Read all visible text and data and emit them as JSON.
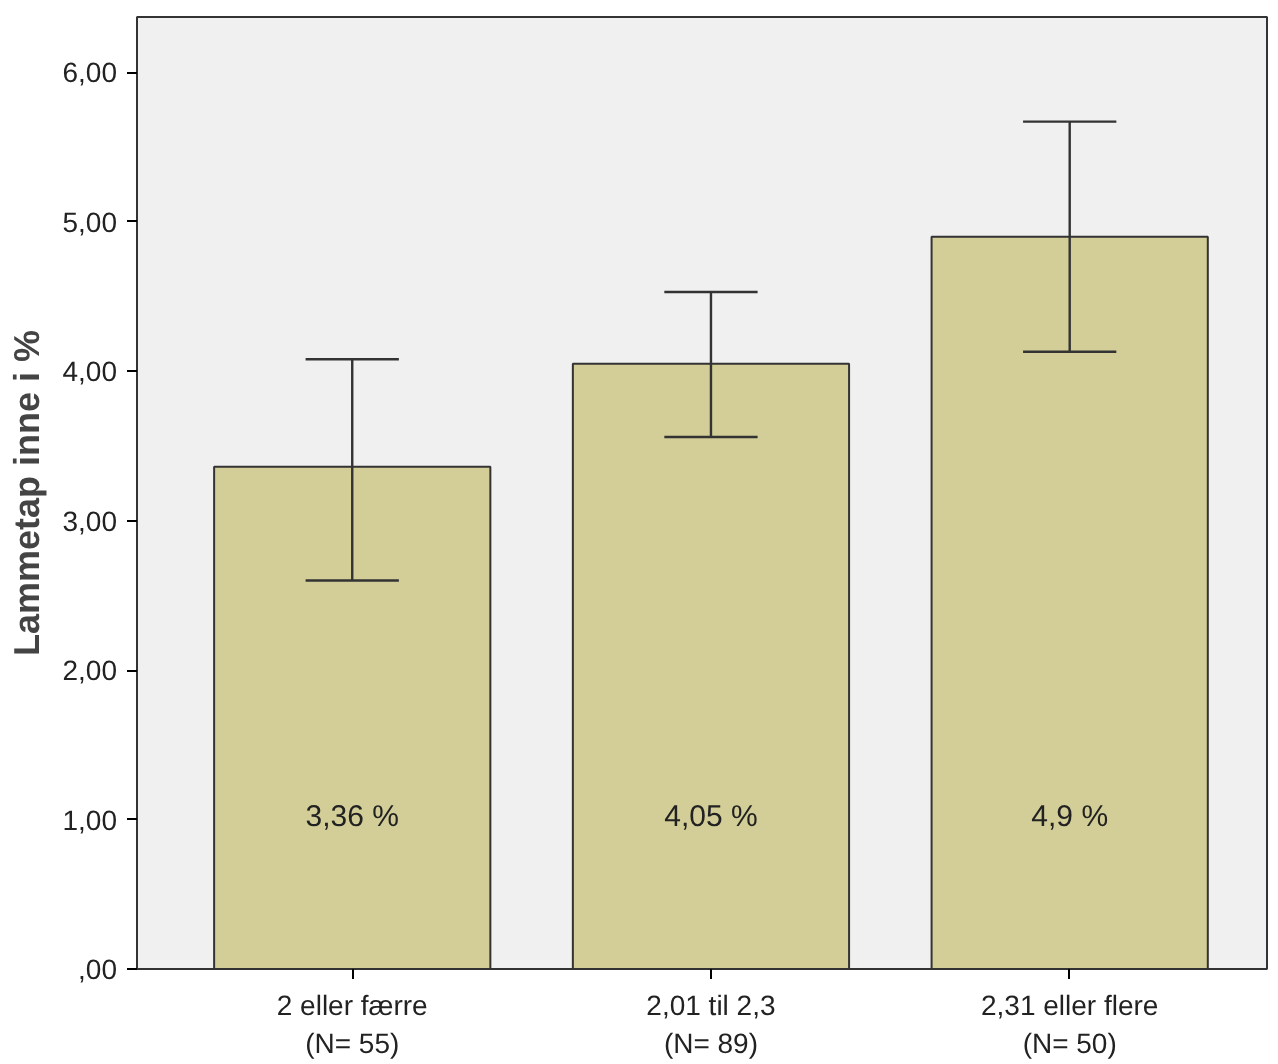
{
  "chart_data": {
    "type": "bar",
    "ylabel": "Lammetap inne i %",
    "categories": [
      "2 eller færre\n(N= 55)",
      "2,01 til 2,3\n(N= 89)",
      "2,31 eller flere\n(N= 50)"
    ],
    "values": [
      3.36,
      4.05,
      4.9
    ],
    "errors": [
      [
        2.6,
        4.08
      ],
      [
        3.56,
        4.53
      ],
      [
        4.13,
        5.67
      ]
    ],
    "value_labels": [
      "3,36 %",
      "4,05 %",
      "4,9 %"
    ],
    "color": "#d3ce97",
    "ylim": [
      0,
      6.37
    ],
    "yticks": [
      {
        "value": 0,
        "label": ",00"
      },
      {
        "value": 1,
        "label": "1,00"
      },
      {
        "value": 2,
        "label": "2,00"
      },
      {
        "value": 3,
        "label": "3,00"
      },
      {
        "value": 4,
        "label": "4,00"
      },
      {
        "value": 5,
        "label": "5,00"
      },
      {
        "value": 6,
        "label": "6,00"
      }
    ],
    "grid": false
  }
}
